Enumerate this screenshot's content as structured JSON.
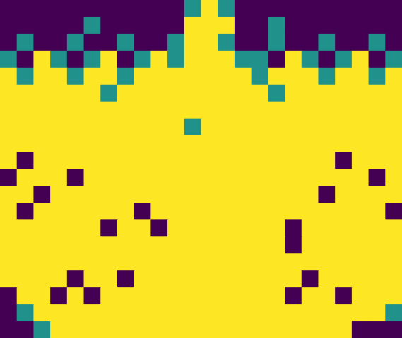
{
  "chart_data": {
    "type": "heatmap",
    "tick_labels": false,
    "zlim": [
      0,
      1
    ],
    "cells": [
      [
        0,
        0,
        0,
        0,
        0,
        0,
        0,
        0,
        0,
        0,
        0,
        0.5,
        1,
        0.5,
        0,
        0,
        0,
        0,
        0,
        0,
        0,
        0,
        0,
        0
      ],
      [
        0,
        0,
        0,
        0,
        0,
        0.5,
        0,
        0,
        0,
        0,
        0,
        1,
        1,
        1,
        0,
        0,
        0.5,
        0,
        0,
        0,
        0,
        0,
        0,
        0
      ],
      [
        0,
        0.5,
        0,
        0,
        0.5,
        0,
        0,
        0.5,
        0,
        0,
        0.5,
        1,
        1,
        0.5,
        0,
        0,
        0.5,
        0,
        0,
        0.5,
        0,
        0,
        0.5,
        0
      ],
      [
        0.5,
        0,
        1,
        0.5,
        0,
        0.5,
        1,
        0,
        0.5,
        1,
        0.5,
        1,
        1,
        1,
        0.5,
        0.5,
        0,
        1,
        0.5,
        0,
        0.5,
        1,
        0,
        0.5
      ],
      [
        1,
        0.5,
        1,
        1,
        0.5,
        1,
        1,
        0.5,
        1,
        1,
        1,
        1,
        1,
        1,
        1,
        0.5,
        1,
        1,
        1,
        0.5,
        1,
        1,
        0.5,
        1
      ],
      [
        1,
        1,
        1,
        1,
        1,
        1,
        0.5,
        1,
        1,
        1,
        1,
        1,
        1,
        1,
        1,
        1,
        0.5,
        1,
        1,
        1,
        1,
        1,
        1,
        1
      ],
      [
        1,
        1,
        1,
        1,
        1,
        1,
        1,
        1,
        1,
        1,
        1,
        1,
        1,
        1,
        1,
        1,
        1,
        1,
        1,
        1,
        1,
        1,
        1,
        1
      ],
      [
        1,
        1,
        1,
        1,
        1,
        1,
        1,
        1,
        1,
        1,
        1,
        0.5,
        1,
        1,
        1,
        1,
        1,
        1,
        1,
        1,
        1,
        1,
        1,
        1
      ],
      [
        1,
        1,
        1,
        1,
        1,
        1,
        1,
        1,
        1,
        1,
        1,
        1,
        1,
        1,
        1,
        1,
        1,
        1,
        1,
        1,
        1,
        1,
        1,
        1
      ],
      [
        1,
        0,
        1,
        1,
        1,
        1,
        1,
        1,
        1,
        1,
        1,
        1,
        1,
        1,
        1,
        1,
        1,
        1,
        1,
        1,
        0,
        1,
        1,
        1
      ],
      [
        0,
        1,
        1,
        1,
        0,
        1,
        1,
        1,
        1,
        1,
        1,
        1,
        1,
        1,
        1,
        1,
        1,
        1,
        1,
        1,
        1,
        1,
        0,
        1
      ],
      [
        1,
        1,
        0,
        1,
        1,
        1,
        1,
        1,
        1,
        1,
        1,
        1,
        1,
        1,
        1,
        1,
        1,
        1,
        1,
        0,
        1,
        1,
        1,
        1
      ],
      [
        1,
        0,
        1,
        1,
        1,
        1,
        1,
        1,
        0,
        1,
        1,
        1,
        1,
        1,
        1,
        1,
        1,
        1,
        1,
        1,
        1,
        1,
        1,
        0
      ],
      [
        1,
        1,
        1,
        1,
        1,
        1,
        0,
        1,
        1,
        0,
        1,
        1,
        1,
        1,
        1,
        1,
        1,
        0,
        1,
        1,
        1,
        1,
        1,
        1
      ],
      [
        1,
        1,
        1,
        1,
        1,
        1,
        1,
        1,
        1,
        1,
        1,
        1,
        1,
        1,
        1,
        1,
        1,
        0,
        1,
        1,
        1,
        1,
        1,
        1
      ],
      [
        1,
        1,
        1,
        1,
        1,
        1,
        1,
        1,
        1,
        1,
        1,
        1,
        1,
        1,
        1,
        1,
        1,
        1,
        1,
        1,
        1,
        1,
        1,
        1
      ],
      [
        1,
        1,
        1,
        1,
        0,
        1,
        1,
        0,
        1,
        1,
        1,
        1,
        1,
        1,
        1,
        1,
        1,
        1,
        0,
        1,
        1,
        1,
        1,
        1
      ],
      [
        0,
        1,
        1,
        0,
        1,
        0,
        1,
        1,
        1,
        1,
        1,
        1,
        1,
        1,
        1,
        1,
        1,
        0,
        1,
        1,
        0,
        1,
        1,
        1
      ],
      [
        0,
        0.5,
        1,
        1,
        1,
        1,
        1,
        1,
        1,
        1,
        1,
        1,
        1,
        1,
        1,
        1,
        1,
        1,
        1,
        1,
        1,
        1,
        1,
        0.5
      ],
      [
        0,
        0,
        0.5,
        1,
        1,
        1,
        1,
        1,
        1,
        1,
        1,
        1,
        1,
        1,
        1,
        1,
        1,
        1,
        1,
        1,
        1,
        0,
        0,
        0
      ]
    ]
  }
}
